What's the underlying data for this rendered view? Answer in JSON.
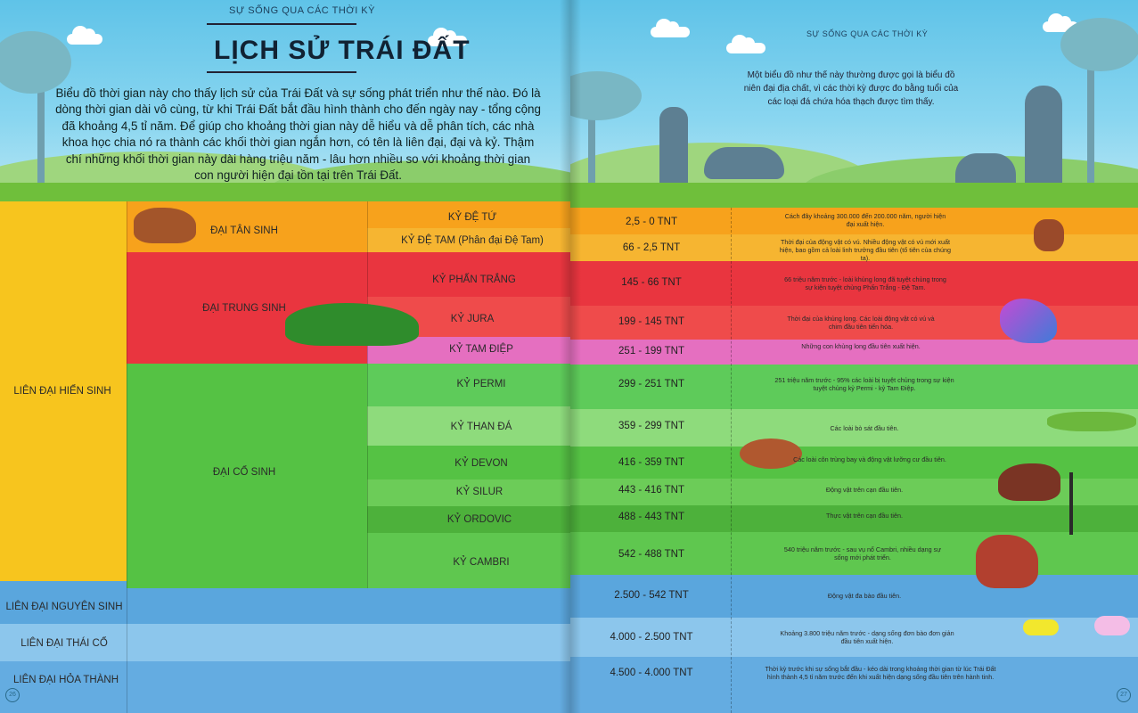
{
  "left_page": {
    "section_header": "SỰ SỐNG QUA CÁC THỜI KỲ",
    "title": "LỊCH SỬ TRÁI ĐẤT",
    "intro": "Biểu đồ thời gian này cho thấy lịch sử của Trái Đất và sự sống phát triển như thế nào. Đó là dòng thời gian dài vô cùng, từ khi Trái Đất bắt đầu hình thành cho đến ngày nay - tổng cộng đã khoảng 4,5 tỉ năm. Để giúp cho khoảng thời gian này dễ hiểu và dễ phân tích, các nhà khoa học chia nó ra thành các khối thời gian ngắn hơn, có tên là liên đại, đại và kỷ. Thậm chí những khối thời gian này dài hàng triệu năm - lâu hơn nhiều so với khoảng thời gian con người hiện đại tồn tại trên Trái Đất.",
    "page_number": "26"
  },
  "right_page": {
    "section_header": "SỰ SỐNG QUA CÁC THỜI KỲ",
    "intro": "Một biểu đồ như thế này thường được gọi là biểu đồ niên đại địa chất, vì các thời kỳ được đo bằng tuổi của các loại đá chứa hóa thạch được tìm thấy.",
    "page_number": "27"
  },
  "eons": {
    "phanerozoic": "LIÊN ĐẠI HIỂN SINH",
    "proterozoic": "LIÊN ĐẠI NGUYÊN SINH",
    "archean": "LIÊN ĐẠI THÁI CỔ",
    "hadean": "LIÊN ĐẠI HỎA THÀNH"
  },
  "eras": {
    "cenozoic": "ĐẠI TÂN SINH",
    "mesozoic": "ĐẠI TRUNG SINH",
    "paleozoic": "ĐẠI CỔ SINH"
  },
  "periods": [
    {
      "name": "KỶ ĐỆ TỨ",
      "range": "2,5 - 0 TNT",
      "note": "Cách đây khoảng 300.000 đến 200.000 năm, người hiện đại xuất hiện.",
      "color": "#f7a21c"
    },
    {
      "name": "KỶ ĐỆ TAM (Phân đại Đệ Tam)",
      "range": "66 - 2,5 TNT",
      "note": "Thời đại của động vật có vú. Nhiều động vật có vú mới xuất hiện, bao gồm cả loài linh trưởng đầu tiên (tổ tiên của chúng ta).",
      "color": "#f6b531"
    },
    {
      "name": "KỶ PHẤN TRẮNG",
      "range": "145 - 66 TNT",
      "note": "66 triệu năm trước - loài khủng long đã tuyệt chủng trong sự kiện tuyệt chủng Phấn Trắng - Đệ Tam.",
      "color": "#e9353f"
    },
    {
      "name": "KỶ JURA",
      "range": "199 - 145 TNT",
      "note": "Thời đại của khủng long. Các loài động vật có vú và chim đầu tiên tiến hóa.",
      "color": "#ef4b4b"
    },
    {
      "name": "KỶ TAM ĐIỆP",
      "range": "251 - 199 TNT",
      "note": "Những con khủng long đầu tiên xuất hiện.",
      "color": "#e56fc0"
    },
    {
      "name": "KỶ PERMI",
      "range": "299 - 251 TNT",
      "note": "251 triệu năm trước - 95% các loài bị tuyệt chủng trong sự kiện tuyệt chủng kỷ Permi - kỷ Tam Điệp.",
      "color": "#5ecb5a"
    },
    {
      "name": "KỶ THAN ĐÁ",
      "range": "359 - 299 TNT",
      "note": "Các loài bò sát đầu tiên.",
      "color": "#8edb7c"
    },
    {
      "name": "KỶ DEVON",
      "range": "416 - 359 TNT",
      "note": "Các loài côn trùng bay và động vật lưỡng cư đầu tiên.",
      "color": "#55c244"
    },
    {
      "name": "KỶ SILUR",
      "range": "443 - 416 TNT",
      "note": "Động vật trên cạn đầu tiên.",
      "color": "#6ccc58"
    },
    {
      "name": "KỶ ORDOVIC",
      "range": "488 - 443 TNT",
      "note": "Thực vật trên cạn đầu tiên.",
      "color": "#4db13b"
    },
    {
      "name": "KỶ CAMBRI",
      "range": "542 - 488 TNT",
      "note": "540 triệu năm trước - sau vụ nổ Cambri, nhiều dạng sự sống mới phát triển.",
      "color": "#5fc74f"
    }
  ],
  "precambrian": [
    {
      "range": "2.500 - 542 TNT",
      "note": "Động vật đa bào đầu tiên."
    },
    {
      "range": "4.000 - 2.500 TNT",
      "note": "Khoảng 3.800 triệu năm trước - dạng sống đơn bào đơn giản đầu tiên xuất hiện."
    },
    {
      "range": "4.500 - 4.000 TNT",
      "note": "Thời kỳ trước khi sự sống bắt đầu - kéo dài trong khoảng thời gian từ lúc Trái Đất hình thành 4,5 tỉ năm trước đến khi xuất hiện dạng sống đầu tiên trên hành tinh."
    }
  ],
  "colors": {
    "eon_phanerozoic": "#f7c51e",
    "cenozoic": "#f7a21c",
    "mesozoic": "#e9353f",
    "paleozoic": "#55c244",
    "precambrian_blue": "#5aa6dd"
  }
}
